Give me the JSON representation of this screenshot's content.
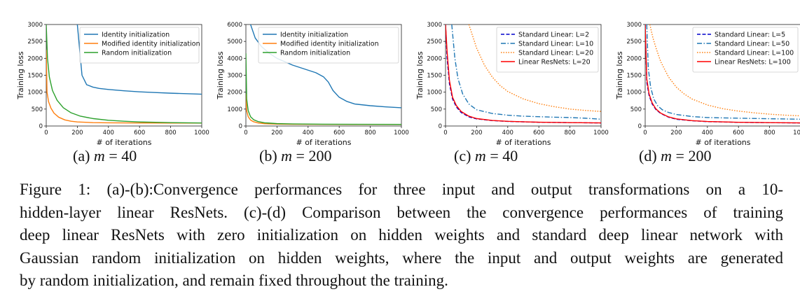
{
  "figure": {
    "panels": [
      {
        "sub_prefix": "(a)",
        "sub_math": "m",
        "sub_eq": " = 40"
      },
      {
        "sub_prefix": "(b)",
        "sub_math": "m",
        "sub_eq": " = 200"
      },
      {
        "sub_prefix": "(c)",
        "sub_math": "m",
        "sub_eq": " = 40"
      },
      {
        "sub_prefix": "(d)",
        "sub_math": "m",
        "sub_eq": " = 200"
      }
    ],
    "caption_lines": [
      "Figure 1: (a)-(b):Convergence performances for three input and output transformations on a 10-",
      "hidden-layer linear ResNets. (c)-(d) Comparison between the convergence performances of training",
      "deep linear ResNets with zero initialization on hidden weights and standard deep linear network with",
      "Gaussian random initialization on hidden weights, where the input and output weights are generated",
      "by random initialization, and remain fixed throughout the training."
    ]
  },
  "chart_data": [
    {
      "type": "line",
      "xlabel": "# of iterations",
      "ylabel": "Training loss",
      "xlim": [
        0,
        1000
      ],
      "ylim": [
        0,
        3000
      ],
      "xticks": [
        0,
        200,
        400,
        600,
        800,
        1000
      ],
      "yticks": [
        0,
        500,
        1000,
        1500,
        2000,
        2500,
        3000
      ],
      "legend_position": "top-right",
      "series": [
        {
          "name": "Identity initialization",
          "color": "#1f77b4",
          "style": "solid",
          "x": [
            200,
            230,
            260,
            300,
            340,
            400,
            500,
            600,
            700,
            800,
            900,
            1000
          ],
          "y": [
            3000,
            1500,
            1220,
            1150,
            1110,
            1080,
            1040,
            1010,
            990,
            970,
            955,
            940
          ]
        },
        {
          "name": "Modified identity initialization",
          "color": "#ff7f0e",
          "style": "solid",
          "x": [
            0,
            5,
            15,
            30,
            50,
            80,
            120,
            160,
            200,
            300,
            400,
            600,
            800,
            1000
          ],
          "y": [
            2250,
            1000,
            720,
            530,
            380,
            260,
            180,
            140,
            120,
            100,
            95,
            90,
            88,
            87
          ]
        },
        {
          "name": "Random initialization",
          "color": "#2ca02c",
          "style": "solid",
          "x": [
            0,
            8,
            20,
            40,
            70,
            110,
            160,
            220,
            300,
            400,
            500,
            600,
            800,
            1000
          ],
          "y": [
            3000,
            2000,
            1450,
            1050,
            760,
            540,
            390,
            290,
            220,
            170,
            140,
            120,
            100,
            90
          ]
        }
      ]
    },
    {
      "type": "line",
      "xlabel": "# of iterations",
      "ylabel": "Training loss",
      "xlim": [
        0,
        1000
      ],
      "ylim": [
        0,
        6000
      ],
      "xticks": [
        0,
        200,
        400,
        600,
        800,
        1000
      ],
      "yticks": [
        0,
        1000,
        2000,
        3000,
        4000,
        5000,
        6000
      ],
      "legend_position": "top-right",
      "series": [
        {
          "name": "Identity initialization",
          "color": "#1f77b4",
          "style": "solid",
          "x": [
            30,
            60,
            100,
            150,
            200,
            250,
            300,
            350,
            400,
            450,
            500,
            530,
            560,
            600,
            650,
            700,
            800,
            900,
            1000
          ],
          "y": [
            6000,
            5200,
            4700,
            4300,
            4000,
            3800,
            3600,
            3450,
            3300,
            3150,
            2900,
            2600,
            2100,
            1700,
            1450,
            1300,
            1200,
            1130,
            1080
          ]
        },
        {
          "name": "Modified identity initialization",
          "color": "#ff7f0e",
          "style": "solid",
          "x": [
            0,
            5,
            15,
            30,
            50,
            80,
            120,
            200,
            300,
            500,
            700,
            1000
          ],
          "y": [
            1900,
            900,
            550,
            350,
            250,
            180,
            140,
            110,
            100,
            95,
            92,
            90
          ]
        },
        {
          "name": "Random initialization",
          "color": "#2ca02c",
          "style": "solid",
          "x": [
            0,
            5,
            15,
            30,
            50,
            80,
            120,
            200,
            300,
            500,
            700,
            1000
          ],
          "y": [
            4300,
            1600,
            900,
            550,
            370,
            260,
            190,
            140,
            120,
            105,
            100,
            95
          ]
        }
      ]
    },
    {
      "type": "line",
      "xlabel": "# of iterations",
      "ylabel": "Training loss",
      "xlim": [
        0,
        1000
      ],
      "ylim": [
        0,
        3000
      ],
      "xticks": [
        0,
        200,
        400,
        600,
        800,
        1000
      ],
      "yticks": [
        0,
        500,
        1000,
        1500,
        2000,
        2500,
        3000
      ],
      "legend_position": "top-right",
      "series": [
        {
          "name": "Standard Linear: L=2",
          "color": "#0000cc",
          "style": "dashed",
          "x": [
            0,
            10,
            25,
            45,
            70,
            100,
            150,
            200,
            300,
            400,
            600,
            800,
            1000
          ],
          "y": [
            3000,
            2000,
            1250,
            800,
            560,
            400,
            270,
            210,
            160,
            135,
            110,
            100,
            90
          ]
        },
        {
          "name": "Standard Linear: L=10",
          "color": "#1f77b4",
          "style": "dashdot",
          "x": [
            40,
            60,
            80,
            110,
            150,
            200,
            300,
            400,
            500,
            600,
            700,
            800,
            900,
            1000
          ],
          "y": [
            3000,
            2000,
            1400,
            950,
            650,
            480,
            370,
            320,
            290,
            275,
            260,
            250,
            230,
            200
          ]
        },
        {
          "name": "Standard Linear: L=20",
          "color": "#ff7f0e",
          "style": "dotted",
          "x": [
            150,
            200,
            250,
            300,
            350,
            400,
            500,
            600,
            700,
            800,
            900,
            1000
          ],
          "y": [
            3000,
            2300,
            1800,
            1450,
            1200,
            1020,
            800,
            660,
            570,
            500,
            460,
            430
          ]
        },
        {
          "name": "Linear ResNets: L=20",
          "color": "#ff0000",
          "style": "solid",
          "x": [
            0,
            10,
            25,
            45,
            70,
            100,
            150,
            200,
            300,
            400,
            600,
            800,
            1000
          ],
          "y": [
            3000,
            2200,
            1350,
            850,
            600,
            430,
            290,
            220,
            165,
            138,
            112,
            100,
            92
          ]
        }
      ]
    },
    {
      "type": "line",
      "xlabel": "# of iterations",
      "ylabel": "Training loss",
      "xlim": [
        0,
        1000
      ],
      "ylim": [
        0,
        3000
      ],
      "xticks": [
        0,
        200,
        400,
        600,
        800,
        1000
      ],
      "yticks": [
        0,
        500,
        1000,
        1500,
        2000,
        2500,
        3000
      ],
      "legend_position": "top-right",
      "series": [
        {
          "name": "Standard Linear: L=5",
          "color": "#0000cc",
          "style": "dashed",
          "x": [
            0,
            10,
            25,
            45,
            70,
            100,
            150,
            200,
            300,
            400,
            600,
            800,
            1000
          ],
          "y": [
            3000,
            1300,
            900,
            650,
            480,
            370,
            260,
            200,
            155,
            130,
            108,
            98,
            90
          ]
        },
        {
          "name": "Standard Linear: L=50",
          "color": "#1f77b4",
          "style": "dashdot",
          "x": [
            10,
            20,
            35,
            55,
            80,
            110,
            150,
            200,
            300,
            400,
            600,
            800,
            1000
          ],
          "y": [
            3000,
            1700,
            1150,
            800,
            600,
            480,
            400,
            340,
            280,
            250,
            230,
            215,
            200
          ]
        },
        {
          "name": "Standard Linear: L=100",
          "color": "#ff7f0e",
          "style": "dotted",
          "x": [
            30,
            50,
            70,
            100,
            150,
            200,
            250,
            300,
            400,
            500,
            600,
            700,
            800,
            900,
            1000
          ],
          "y": [
            3000,
            2600,
            2300,
            1900,
            1450,
            1150,
            950,
            800,
            620,
            510,
            440,
            390,
            350,
            320,
            300
          ]
        },
        {
          "name": "Linear ResNets: L=100",
          "color": "#ff0000",
          "style": "solid",
          "x": [
            0,
            10,
            25,
            45,
            70,
            100,
            150,
            200,
            300,
            400,
            600,
            800,
            1000
          ],
          "y": [
            3000,
            1400,
            950,
            680,
            500,
            380,
            270,
            210,
            160,
            133,
            110,
            99,
            92
          ]
        }
      ]
    }
  ]
}
